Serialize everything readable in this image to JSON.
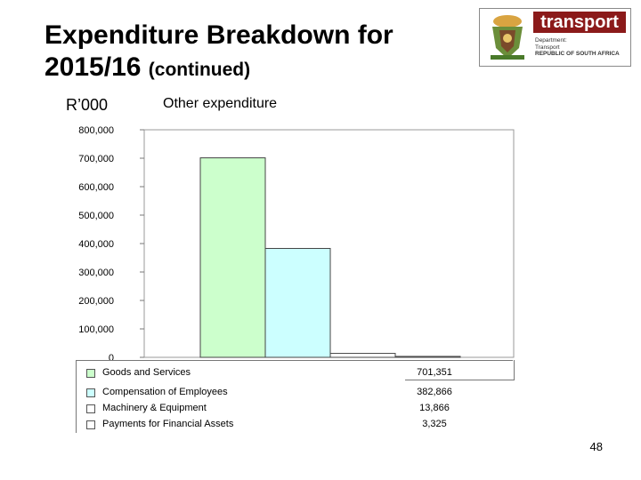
{
  "slide": {
    "title_main": "Expenditure Breakdown for",
    "title_year": "2015/16",
    "title_suffix": "(continued)",
    "unit": "R’000",
    "page_number": "48"
  },
  "logo": {
    "word": "transport",
    "line1": "Department:",
    "line2": "Transport",
    "line3": "REPUBLIC OF SOUTH AFRICA",
    "brand_color": "#8b1a1a"
  },
  "chart_data": {
    "type": "bar",
    "title": "Other expenditure",
    "ylim": [
      0,
      800000
    ],
    "ytick_labels": [
      "0",
      "100,000",
      "200,000",
      "300,000",
      "400,000",
      "500,000",
      "600,000",
      "700,000",
      "800,000"
    ],
    "grid": false,
    "legend_position": "bottom",
    "series": [
      {
        "name": "Goods and Services",
        "value": 701351,
        "value_label": "701,351",
        "color": "#ccffcc"
      },
      {
        "name": "Compensation of Employees",
        "value": 382866,
        "value_label": "382,866",
        "color": "#ccffff"
      },
      {
        "name": "Machinery & Equipment",
        "value": 13866,
        "value_label": "13,866",
        "color": "#ffffff"
      },
      {
        "name": "Payments for Financial Assets",
        "value": 3325,
        "value_label": "3,325",
        "color": "#ffffff"
      }
    ]
  }
}
